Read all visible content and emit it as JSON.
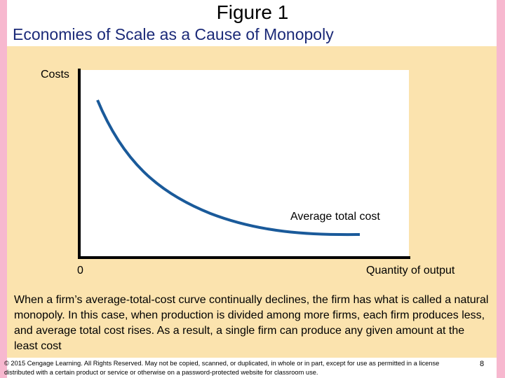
{
  "slide": {
    "title": "Figure 1",
    "subtitle": "Economies of Scale as a Cause of Monopoly",
    "caption": "When a firm’s average-total-cost curve continually declines, the firm has what is called a natural monopoly. In this case, when production is divided among more firms, each firm produces less, and average total cost rises. As a result, a single firm can produce any given amount at the least cost",
    "footer": "© 2015 Cengage Learning. All Rights Reserved. May not be copied, scanned, or duplicated, in whole or in part, except for use as permitted in a license distributed with a certain product or service or otherwise on a password-protected website for classroom use.",
    "page_number": "8"
  },
  "diagram": {
    "y_axis_label": "Costs",
    "x_axis_label": "Quantity of output",
    "origin_label": "0",
    "curve_label": "Average total cost",
    "curve_color": "#1a5a9a",
    "axis_color": "#000000"
  }
}
